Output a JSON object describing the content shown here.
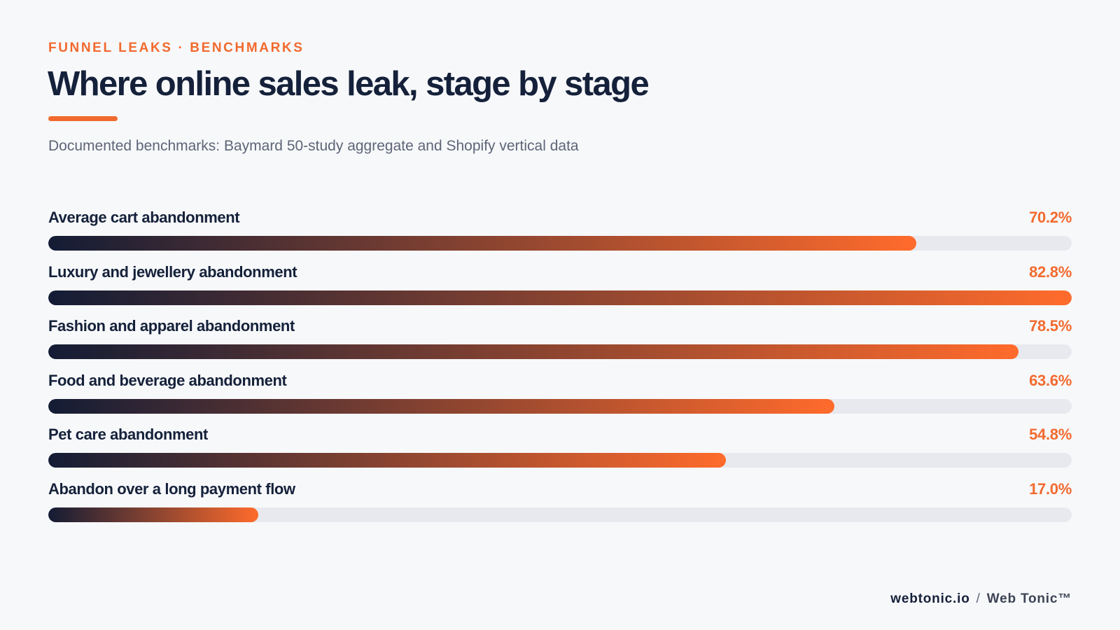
{
  "header": {
    "eyebrow": "FUNNEL LEAKS · BENCHMARKS",
    "title": "Where online sales leak, stage by stage",
    "subtitle": "Documented benchmarks: Baymard 50-study aggregate and Shopify vertical data"
  },
  "chart_data": {
    "type": "bar",
    "orientation": "horizontal",
    "title": "Where online sales leak, stage by stage",
    "subtitle": "Documented benchmarks: Baymard 50-study aggregate and Shopify vertical data",
    "xlabel": "",
    "ylabel": "",
    "xlim": [
      0,
      82.8
    ],
    "grid": false,
    "legend": "none",
    "categories": [
      "Average cart abandonment",
      "Luxury and jewellery abandonment",
      "Fashion and apparel abandonment",
      "Food and beverage abandonment",
      "Pet care abandonment",
      "Abandon over a long payment flow"
    ],
    "values": [
      70.2,
      82.8,
      78.5,
      63.6,
      54.8,
      17.0
    ],
    "value_labels": [
      "70.2%",
      "82.8%",
      "78.5%",
      "63.6%",
      "54.8%",
      "17.0%"
    ],
    "colors": {
      "gradient_start": "#131c35",
      "gradient_end": "#ff6b2c",
      "track": "#e7e9ee",
      "accent": "#f26a2e"
    }
  },
  "footer": {
    "site": "webtonic.io",
    "separator": "/",
    "brand": "Web Tonic™"
  }
}
